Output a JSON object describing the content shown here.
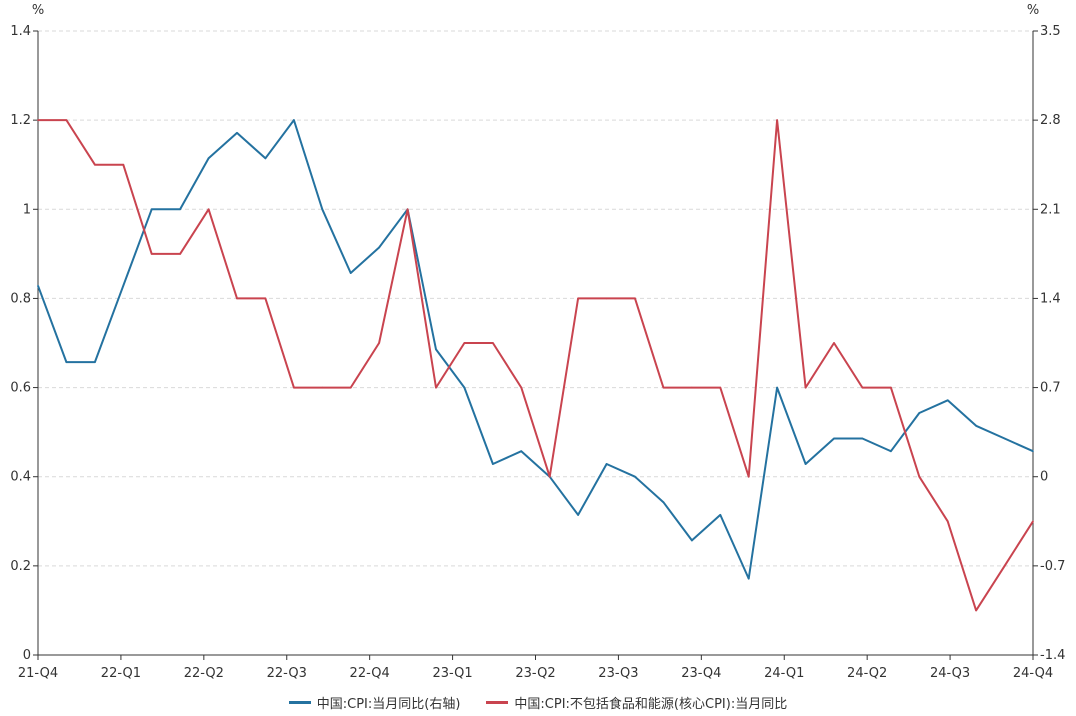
{
  "chart_data": {
    "type": "line",
    "x_ticks": [
      "21-Q4",
      "22-Q1",
      "22-Q2",
      "22-Q3",
      "22-Q4",
      "23-Q1",
      "23-Q2",
      "23-Q3",
      "23-Q4",
      "24-Q1",
      "24-Q2",
      "24-Q3",
      "24-Q4"
    ],
    "left_axis": {
      "unit": "%",
      "ylim": [
        0,
        1.4
      ],
      "ticks": [
        "0",
        "0.2",
        "0.4",
        "0.6",
        "0.8",
        "1",
        "1.2",
        "1.4"
      ]
    },
    "right_axis": {
      "unit": "%",
      "ylim": [
        -1.4,
        3.5
      ],
      "ticks": [
        "-1.4",
        "-0.7",
        "0",
        "0.7",
        "1.4",
        "2.1",
        "2.8",
        "3.5"
      ]
    },
    "grid": "horizontal dashed",
    "legend_position": "bottom",
    "series": [
      {
        "name": "中国:CPI:当月同比(右轴)",
        "axis": "right",
        "color": "#2472a0",
        "values": [
          1.5,
          0.9,
          0.9,
          1.5,
          2.1,
          2.1,
          2.5,
          2.7,
          2.5,
          2.8,
          2.1,
          1.6,
          1.8,
          2.1,
          1.0,
          0.7,
          0.1,
          0.2,
          0.0,
          -0.3,
          0.1,
          0.0,
          -0.2,
          -0.5,
          -0.3,
          -0.8,
          0.7,
          0.1,
          0.3,
          0.3,
          0.2,
          0.5,
          0.6,
          0.4,
          0.3,
          0.2
        ]
      },
      {
        "name": "中国:CPI:不包括食品和能源(核心CPI):当月同比",
        "axis": "left",
        "color": "#c9444f",
        "values": [
          1.2,
          1.2,
          1.1,
          1.1,
          0.9,
          0.9,
          1.0,
          0.8,
          0.8,
          0.6,
          0.6,
          0.6,
          0.7,
          1.0,
          0.6,
          0.7,
          0.7,
          0.6,
          0.4,
          0.8,
          0.8,
          0.8,
          0.6,
          0.6,
          0.6,
          0.4,
          1.2,
          0.6,
          0.7,
          0.6,
          0.6,
          0.4,
          0.3,
          0.1,
          0.2,
          0.3
        ]
      }
    ]
  },
  "colors": {
    "axis": "#333333",
    "grid": "#d9d9d9",
    "background": "#ffffff"
  }
}
